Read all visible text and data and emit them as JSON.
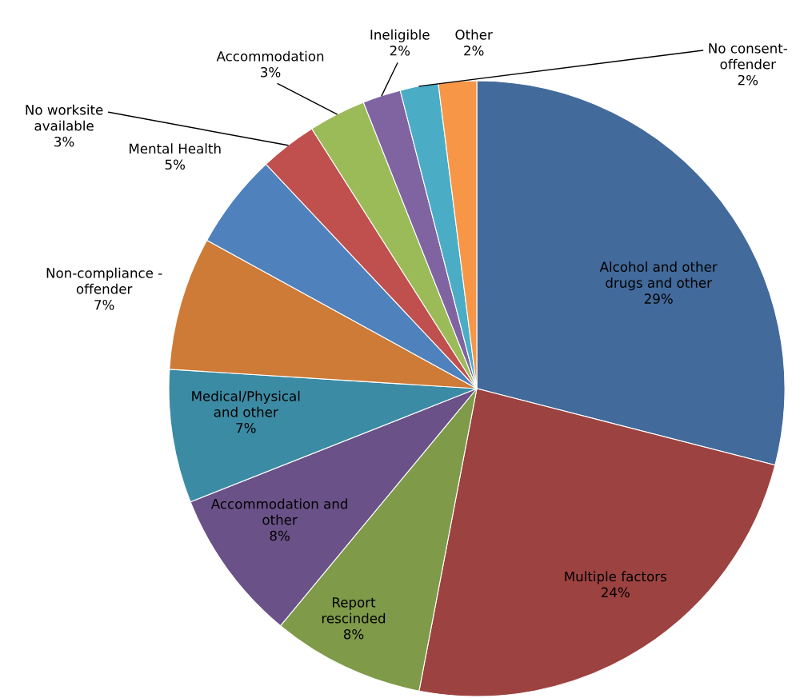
{
  "chart_data": {
    "type": "pie",
    "categories": [
      "Alcohol and other\ndrugs and other",
      "Multiple factors",
      "Report\nrescinded",
      "Accommodation and\nother",
      "Medical/Physical\nand other",
      "Non-compliance -\noffender",
      "Mental Health",
      "No worksite\navailable",
      "Accommodation",
      "Ineligible",
      "No consent-\noffender",
      "Other"
    ],
    "values": [
      29,
      24,
      8,
      8,
      7,
      7,
      5,
      3,
      3,
      2,
      2,
      2
    ],
    "value_labels": [
      "29%",
      "24%",
      "8%",
      "8%",
      "7%",
      "7%",
      "5%",
      "3%",
      "3%",
      "2%",
      "2%",
      "2%"
    ],
    "colors": [
      "#426a9b",
      "#9c4240",
      "#7f9a48",
      "#6a5187",
      "#3c8ba4",
      "#cd7b37",
      "#4f81bd",
      "#c0504d",
      "#9bbb59",
      "#8064a2",
      "#4bacc6",
      "#f79646"
    ],
    "legend": false
  }
}
